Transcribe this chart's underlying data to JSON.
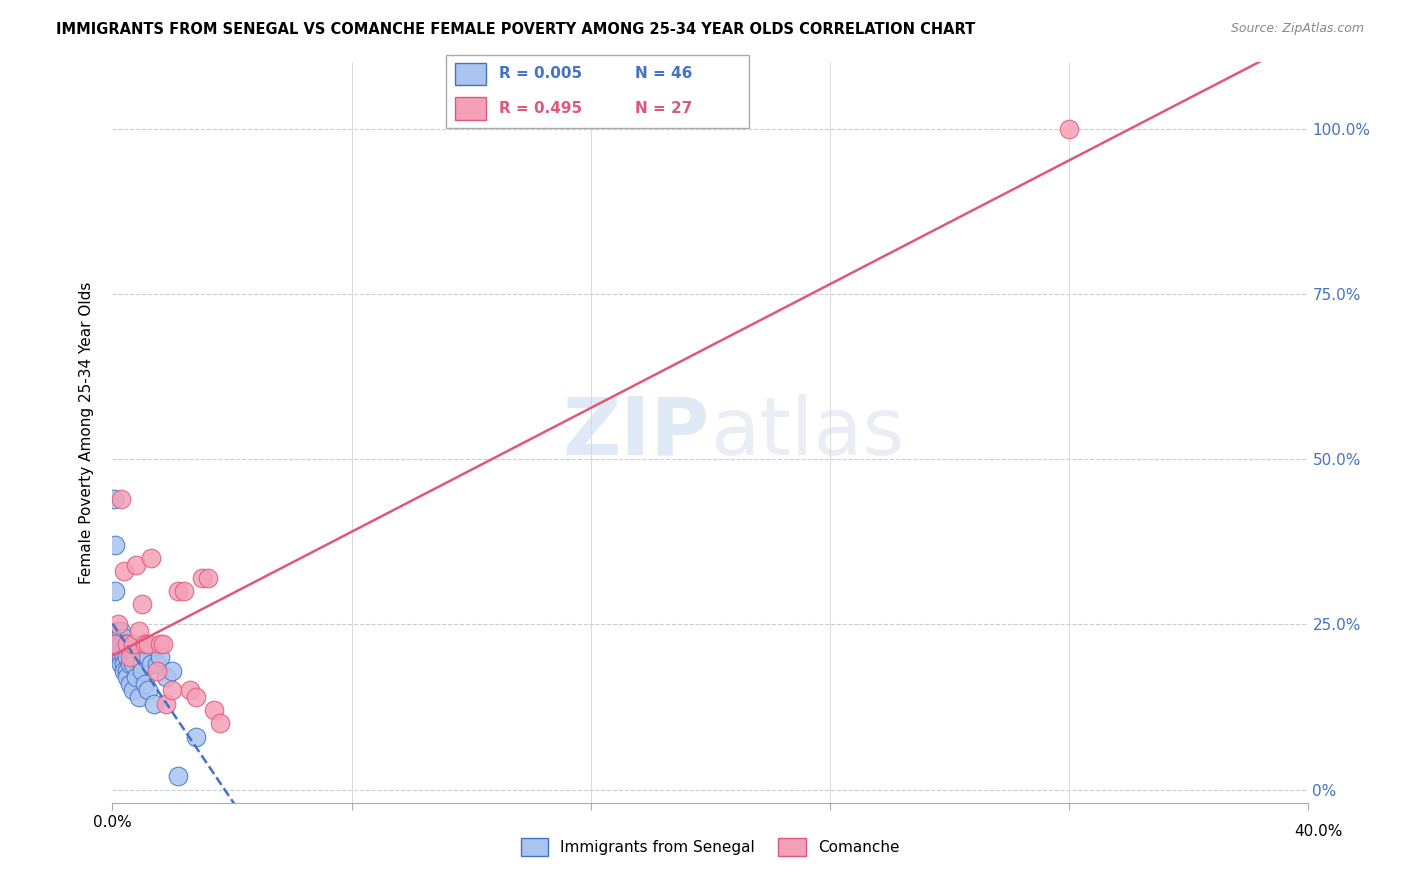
{
  "title": "IMMIGRANTS FROM SENEGAL VS COMANCHE FEMALE POVERTY AMONG 25-34 YEAR OLDS CORRELATION CHART",
  "source": "Source: ZipAtlas.com",
  "ylabel": "Female Poverty Among 25-34 Year Olds",
  "legend_1_label": "Immigrants from Senegal",
  "legend_2_label": "Comanche",
  "series1_R": "0.005",
  "series1_N": "46",
  "series2_R": "0.495",
  "series2_N": "27",
  "color1": "#aac4f0",
  "color2": "#f4a0b8",
  "color1_dark": "#4472c4",
  "color2_dark": "#e05878",
  "xlim": [
    0.0,
    0.4
  ],
  "ylim": [
    -0.02,
    1.1
  ],
  "yticks": [
    0.0,
    0.25,
    0.5,
    0.75,
    1.0
  ],
  "xticks": [
    0.0,
    0.08,
    0.16,
    0.24,
    0.32,
    0.4
  ],
  "senegal_x": [
    0.0005,
    0.001,
    0.001,
    0.002,
    0.002,
    0.002,
    0.002,
    0.003,
    0.003,
    0.003,
    0.003,
    0.003,
    0.004,
    0.004,
    0.004,
    0.004,
    0.004,
    0.005,
    0.005,
    0.005,
    0.005,
    0.006,
    0.006,
    0.006,
    0.007,
    0.007,
    0.007,
    0.008,
    0.008,
    0.009,
    0.009,
    0.01,
    0.01,
    0.01,
    0.011,
    0.011,
    0.012,
    0.012,
    0.013,
    0.014,
    0.015,
    0.016,
    0.018,
    0.02,
    0.022,
    0.028
  ],
  "senegal_y": [
    0.44,
    0.37,
    0.3,
    0.24,
    0.23,
    0.22,
    0.21,
    0.24,
    0.22,
    0.22,
    0.2,
    0.19,
    0.23,
    0.22,
    0.2,
    0.19,
    0.18,
    0.22,
    0.2,
    0.18,
    0.17,
    0.21,
    0.19,
    0.16,
    0.2,
    0.19,
    0.15,
    0.2,
    0.17,
    0.21,
    0.14,
    0.21,
    0.19,
    0.18,
    0.2,
    0.16,
    0.2,
    0.15,
    0.19,
    0.13,
    0.19,
    0.2,
    0.17,
    0.18,
    0.02,
    0.08
  ],
  "comanche_x": [
    0.001,
    0.002,
    0.003,
    0.004,
    0.005,
    0.006,
    0.007,
    0.008,
    0.009,
    0.01,
    0.011,
    0.012,
    0.013,
    0.015,
    0.016,
    0.017,
    0.018,
    0.02,
    0.022,
    0.024,
    0.026,
    0.028,
    0.03,
    0.032,
    0.034,
    0.32,
    0.036
  ],
  "comanche_y": [
    0.22,
    0.25,
    0.44,
    0.33,
    0.22,
    0.2,
    0.22,
    0.34,
    0.24,
    0.28,
    0.22,
    0.22,
    0.35,
    0.18,
    0.22,
    0.22,
    0.13,
    0.15,
    0.3,
    0.3,
    0.15,
    0.14,
    0.32,
    0.32,
    0.12,
    1.0,
    0.1
  ],
  "background_color": "#ffffff"
}
